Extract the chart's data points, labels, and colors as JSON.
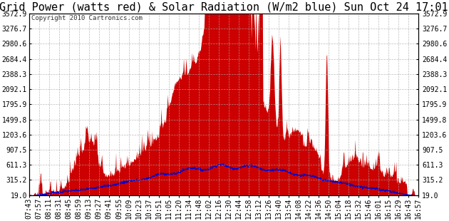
{
  "title": "Grid Power (watts red) & Solar Radiation (W/m2 blue) Sun Oct 24 17:01",
  "copyright_text": "Copyright 2010 Cartronics.com",
  "yticks": [
    19.0,
    315.2,
    611.3,
    907.5,
    1203.6,
    1499.8,
    1795.9,
    2092.1,
    2388.3,
    2684.4,
    2980.6,
    3276.7,
    3572.9
  ],
  "ymin": 19.0,
  "ymax": 3572.9,
  "xtick_labels": [
    "07:43",
    "07:57",
    "08:11",
    "08:31",
    "08:45",
    "08:59",
    "09:13",
    "09:27",
    "09:41",
    "09:55",
    "10:09",
    "10:23",
    "10:37",
    "10:51",
    "11:05",
    "11:20",
    "11:34",
    "11:48",
    "12:02",
    "12:16",
    "12:30",
    "12:44",
    "12:58",
    "13:12",
    "13:26",
    "13:40",
    "13:54",
    "14:08",
    "14:22",
    "14:36",
    "14:50",
    "15:04",
    "15:18",
    "15:32",
    "15:46",
    "16:01",
    "16:15",
    "16:29",
    "16:43",
    "16:57"
  ],
  "background_color": "#ffffff",
  "grid_color": "#aaaaaa",
  "fill_color": "#cc0000",
  "line_color": "#0000cc",
  "title_fontsize": 11,
  "tick_fontsize": 7,
  "solar_scale": 1.0,
  "solar_peak": 600.0
}
